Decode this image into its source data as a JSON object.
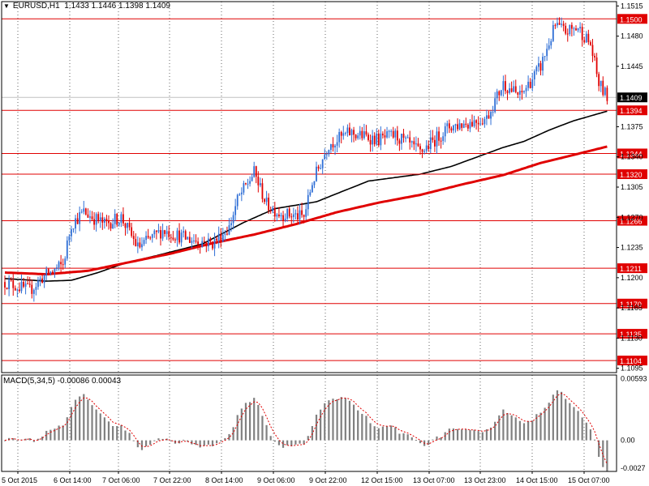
{
  "header": {
    "menu_icon": "dropdown-triangle-icon",
    "symbol": "EURUSD,H1",
    "ohlc": "1.1433 1.1446 1.1398 1.1409"
  },
  "macd": {
    "label": "MACD(5,34,5) -0.00086 0.00043",
    "axis_ticks": [
      "0.00593",
      "0.00",
      "-0.0027"
    ]
  },
  "colors": {
    "level_line": "#e00000",
    "bull_candle": "#2f6fd6",
    "bear_candle": "#e00000",
    "ma_slow": "#e00000",
    "ma_fast": "#000000",
    "grid": "#000000",
    "histogram": "#808080",
    "signal": "#e00000"
  },
  "chart_data": {
    "type": "candlestick",
    "symbol": "EURUSD",
    "timeframe": "H1",
    "ylim": [
      1.109,
      1.152
    ],
    "grid": "dotted vertical",
    "y_ticks": [
      "1.1515",
      "1.1480",
      "1.1445",
      "1.1375",
      "1.1340",
      "1.1305",
      "1.1270",
      "1.1235",
      "1.1200",
      "1.1165",
      "1.1130",
      "1.1095"
    ],
    "current_price": "1.1409",
    "levels": [
      "1.1500",
      "1.1394",
      "1.1344",
      "1.1320",
      "1.1266",
      "1.1211",
      "1.1170",
      "1.1135",
      "1.1104"
    ],
    "x_ticks": [
      "5 Oct 2015",
      "6 Oct 14:00",
      "7 Oct 06:00",
      "7 Oct 22:00",
      "8 Oct 14:00",
      "9 Oct 06:00",
      "9 Oct 22:00",
      "12 Oct 15:00",
      "13 Oct 07:00",
      "13 Oct 23:00",
      "14 Oct 15:00",
      "15 Oct 07:00"
    ],
    "close_path": [
      [
        0,
        1.1195
      ],
      [
        12,
        1.1185
      ],
      [
        18,
        1.12
      ],
      [
        28,
        1.1215
      ],
      [
        32,
        1.1262
      ],
      [
        38,
        1.1276
      ],
      [
        48,
        1.1262
      ],
      [
        56,
        1.127
      ],
      [
        64,
        1.1235
      ],
      [
        76,
        1.1255
      ],
      [
        88,
        1.1245
      ],
      [
        100,
        1.124
      ],
      [
        108,
        1.1258
      ],
      [
        112,
        1.129
      ],
      [
        120,
        1.1322
      ],
      [
        126,
        1.1285
      ],
      [
        132,
        1.1275
      ],
      [
        144,
        1.127
      ],
      [
        148,
        1.131
      ],
      [
        156,
        1.1355
      ],
      [
        166,
        1.1368
      ],
      [
        180,
        1.136
      ],
      [
        188,
        1.1365
      ],
      [
        200,
        1.1345
      ],
      [
        214,
        1.1375
      ],
      [
        220,
        1.1378
      ],
      [
        232,
        1.1385
      ],
      [
        240,
        1.1425
      ],
      [
        248,
        1.141
      ],
      [
        258,
        1.1445
      ],
      [
        265,
        1.1492
      ],
      [
        270,
        1.1485
      ],
      [
        276,
        1.149
      ],
      [
        282,
        1.147
      ],
      [
        286,
        1.1425
      ],
      [
        290,
        1.1409
      ]
    ],
    "series": [
      {
        "values": [
          [
            0,
            1.1199
          ],
          [
            20,
            1.1196
          ],
          [
            32,
            1.1197
          ],
          [
            45,
            1.1206
          ],
          [
            58,
            1.1217
          ],
          [
            72,
            1.1225
          ],
          [
            95,
            1.1239
          ],
          [
            115,
            1.1264
          ],
          [
            130,
            1.128
          ],
          [
            150,
            1.1288
          ],
          [
            175,
            1.1312
          ],
          [
            200,
            1.132
          ],
          [
            215,
            1.1329
          ],
          [
            240,
            1.1351
          ],
          [
            250,
            1.1358
          ],
          [
            262,
            1.1371
          ],
          [
            274,
            1.1382
          ],
          [
            290,
            1.1393
          ]
        ]
      },
      {
        "values": [
          [
            0,
            1.1206
          ],
          [
            20,
            1.1204
          ],
          [
            40,
            1.1208
          ],
          [
            60,
            1.1218
          ],
          [
            80,
            1.1228
          ],
          [
            100,
            1.124
          ],
          [
            120,
            1.125
          ],
          [
            140,
            1.1262
          ],
          [
            160,
            1.1276
          ],
          [
            180,
            1.1287
          ],
          [
            200,
            1.1296
          ],
          [
            220,
            1.1308
          ],
          [
            240,
            1.1319
          ],
          [
            258,
            1.1333
          ],
          [
            270,
            1.134
          ],
          [
            290,
            1.1352
          ]
        ]
      }
    ],
    "macd_indicator": {
      "params": "5,34,5",
      "main": -0.00086,
      "signal": 0.00043,
      "ylim": [
        -0.003,
        0.0063
      ]
    }
  }
}
